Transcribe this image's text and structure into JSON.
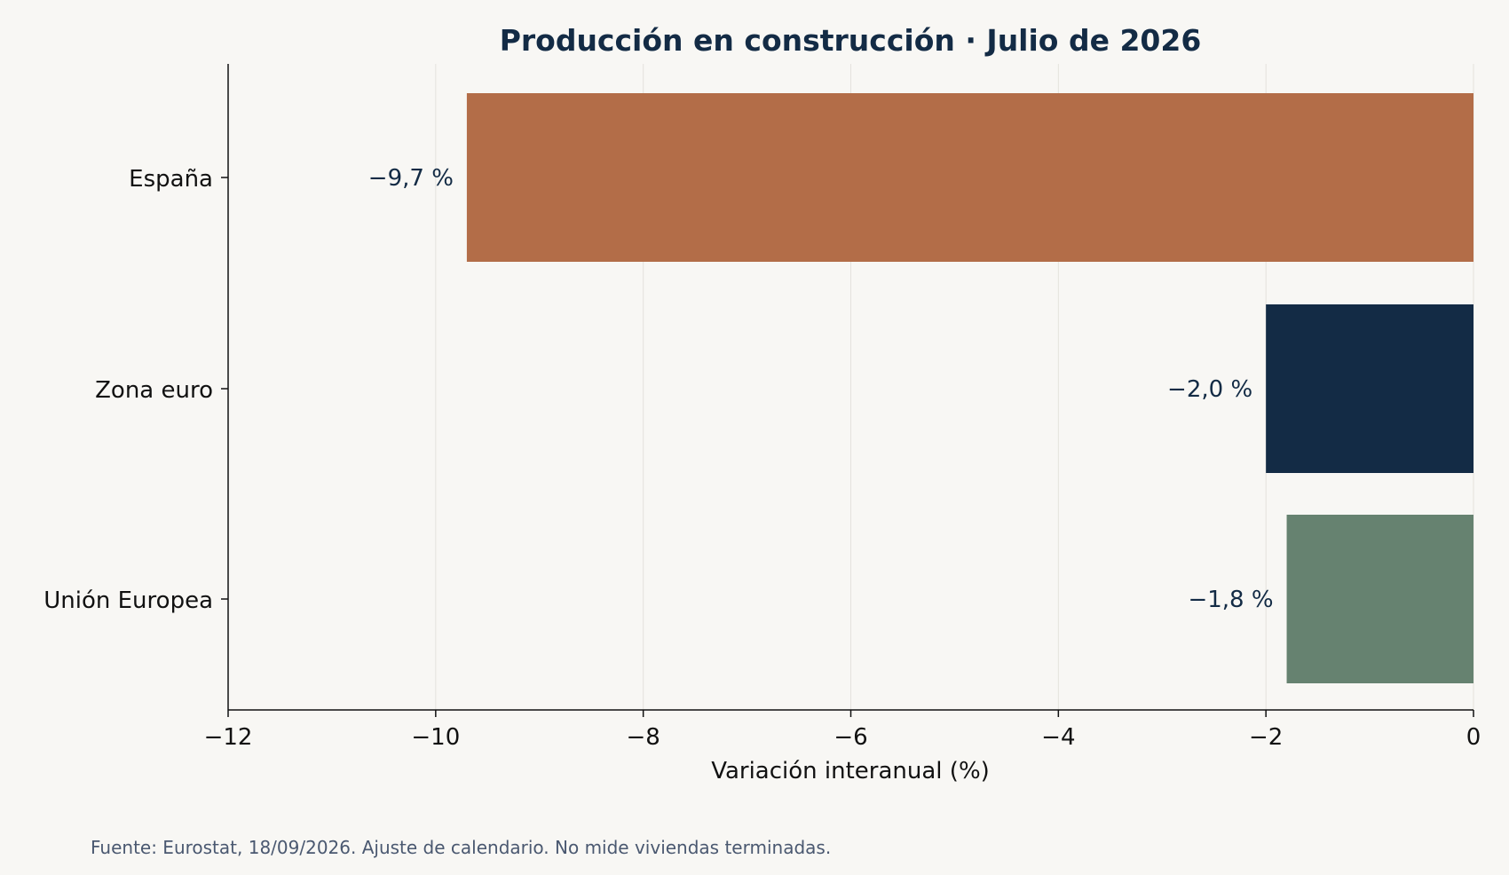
{
  "chart_data": {
    "type": "bar",
    "orientation": "horizontal",
    "title": "Producción en construcción · Julio de 2026",
    "xlabel": "Variación interanual (%)",
    "ylabel": "",
    "categories": [
      "España",
      "Zona euro",
      "Unión Europea"
    ],
    "values": [
      -9.7,
      -2.0,
      -1.8
    ],
    "value_labels": [
      "−9,7 %",
      "−2,0 %",
      "−1,8 %"
    ],
    "colors": [
      "#b36d48",
      "#132b45",
      "#668270"
    ],
    "xlim": [
      -12,
      0
    ],
    "xticks": [
      -12,
      -10,
      -8,
      -6,
      -4,
      -2,
      0
    ],
    "xtick_labels": [
      "−12",
      "−10",
      "−8",
      "−6",
      "−4",
      "−2",
      "0"
    ],
    "grid": "vertical",
    "legend": "none"
  },
  "footer": {
    "source": "Fuente: Eurostat, 18/09/2026. Ajuste de calendario. No mide viviendas terminadas."
  }
}
